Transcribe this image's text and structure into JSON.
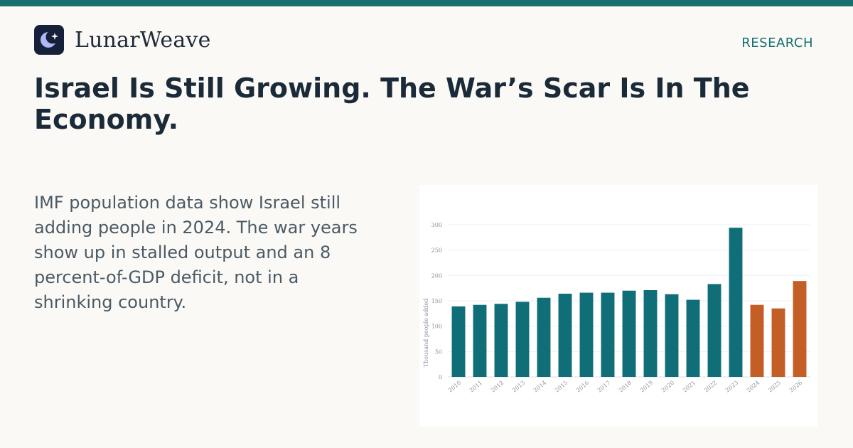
{
  "brand": {
    "name": "LunarWeave",
    "logo_icon": "crescent-moon-star-icon"
  },
  "header": {
    "section": "RESEARCH"
  },
  "article": {
    "title": "Israel Is Still Growing. The War’s Scar Is In The Economy.",
    "lede": "IMF population data show Israel still adding people in 2024. The war years show up in stalled output and an 8 percent-of-GDP deficit, not in a shrinking country."
  },
  "colors": {
    "accent": "#15706f",
    "bar_actual": "#0f6e78",
    "bar_forecast": "#c45e27"
  },
  "chart_data": {
    "type": "bar",
    "title": "",
    "xlabel": "",
    "ylabel": "Thousand people added",
    "ylim": [
      0,
      300
    ],
    "yticks": [
      0,
      50,
      100,
      150,
      200,
      250,
      300
    ],
    "grid": true,
    "categories": [
      "2010",
      "2011",
      "2012",
      "2013",
      "2014",
      "2015",
      "2016",
      "2017",
      "2018",
      "2019",
      "2020",
      "2021",
      "2022",
      "2023",
      "2024",
      "2025",
      "2026"
    ],
    "values": [
      139,
      142,
      144,
      148,
      156,
      164,
      166,
      166,
      170,
      171,
      163,
      152,
      183,
      294,
      142,
      135,
      189
    ],
    "bar_color_key": [
      "actual",
      "actual",
      "actual",
      "actual",
      "actual",
      "actual",
      "actual",
      "actual",
      "actual",
      "actual",
      "actual",
      "actual",
      "actual",
      "actual",
      "forecast",
      "forecast",
      "forecast"
    ]
  }
}
